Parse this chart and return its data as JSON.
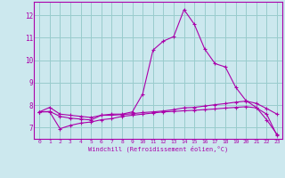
{
  "xlabel": "Windchill (Refroidissement éolien,°C)",
  "background_color": "#cce8ee",
  "line_color": "#aa00aa",
  "grid_color": "#99cccc",
  "xlim": [
    -0.5,
    23.5
  ],
  "ylim": [
    6.5,
    12.6
  ],
  "yticks": [
    7,
    8,
    9,
    10,
    11,
    12
  ],
  "xticks": [
    0,
    1,
    2,
    3,
    4,
    5,
    6,
    7,
    8,
    9,
    10,
    11,
    12,
    13,
    14,
    15,
    16,
    17,
    18,
    19,
    20,
    21,
    22,
    23
  ],
  "curve1_x": [
    0,
    1,
    2,
    3,
    4,
    5,
    6,
    7,
    8,
    9,
    10,
    11,
    12,
    13,
    14,
    15,
    16,
    17,
    18,
    19,
    20,
    21,
    22,
    23
  ],
  "curve1_y": [
    7.7,
    7.9,
    7.6,
    7.55,
    7.5,
    7.45,
    7.55,
    7.6,
    7.6,
    7.7,
    8.5,
    10.45,
    10.85,
    11.05,
    12.25,
    11.6,
    10.5,
    9.85,
    9.7,
    8.8,
    8.2,
    7.9,
    7.35,
    6.7
  ],
  "curve2_x": [
    0,
    1,
    2,
    3,
    4,
    5,
    6,
    7,
    8,
    9,
    10,
    11,
    12,
    13,
    14,
    15,
    16,
    17,
    18,
    19,
    20,
    21,
    22,
    23
  ],
  "curve2_y": [
    7.7,
    7.7,
    6.95,
    7.1,
    7.2,
    7.25,
    7.35,
    7.4,
    7.5,
    7.55,
    7.6,
    7.65,
    7.7,
    7.72,
    7.75,
    7.77,
    7.8,
    7.83,
    7.87,
    7.9,
    7.93,
    7.88,
    7.6,
    6.65
  ],
  "curve3_x": [
    0,
    1,
    2,
    3,
    4,
    5,
    6,
    7,
    8,
    9,
    10,
    11,
    12,
    13,
    14,
    15,
    16,
    17,
    18,
    19,
    20,
    21,
    22,
    23
  ],
  "curve3_y": [
    7.7,
    7.72,
    7.5,
    7.42,
    7.38,
    7.34,
    7.55,
    7.55,
    7.58,
    7.62,
    7.67,
    7.7,
    7.74,
    7.8,
    7.88,
    7.9,
    7.96,
    8.02,
    8.07,
    8.13,
    8.18,
    8.08,
    7.85,
    7.6
  ]
}
